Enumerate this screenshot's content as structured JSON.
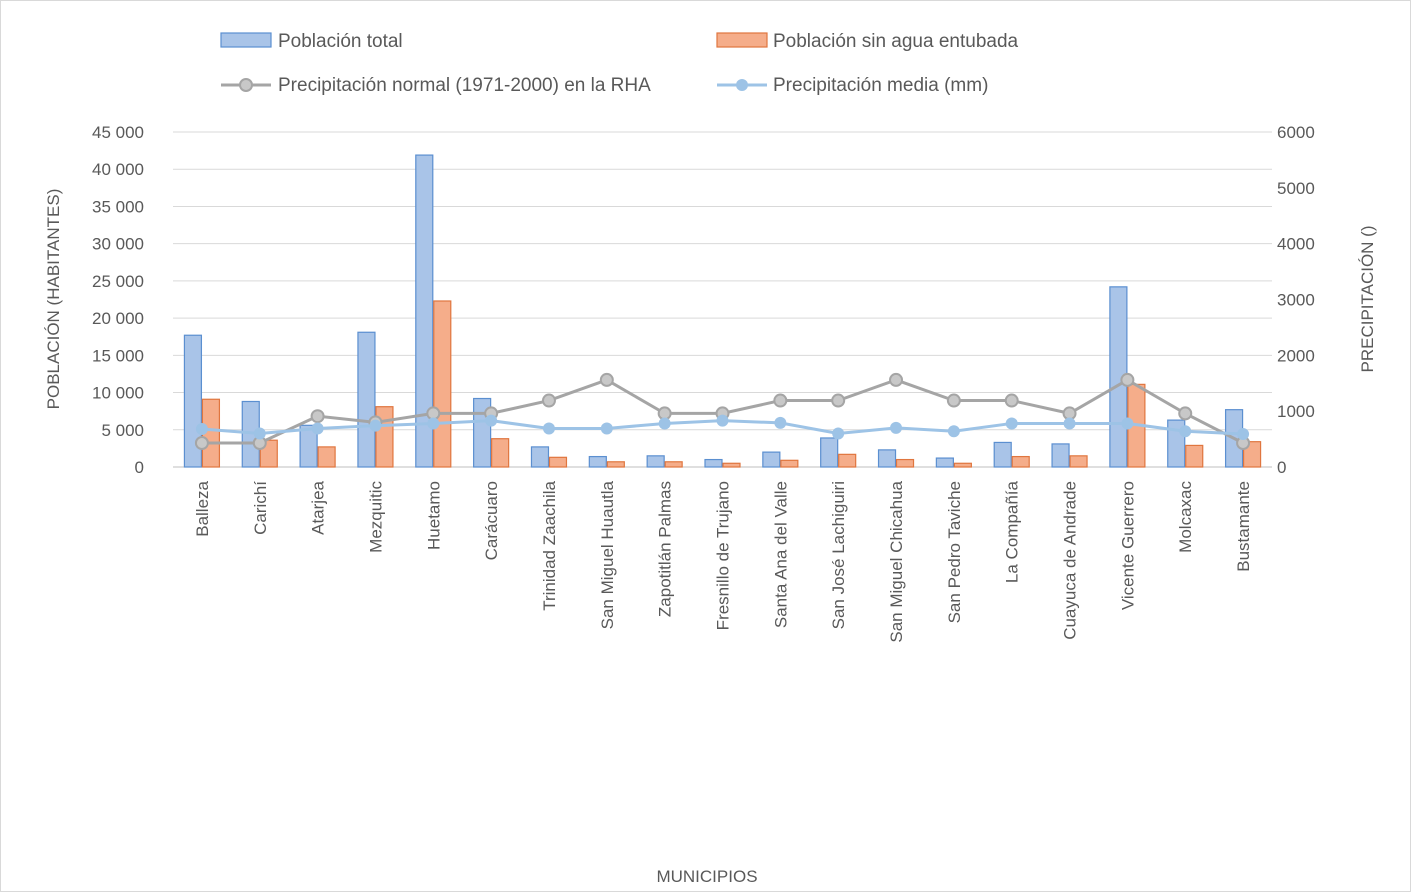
{
  "chart_data": {
    "type": "bar",
    "xlabel": "MUNICIPIOS",
    "ylabel": "POBLACIÓN (HABITANTES)",
    "y2label": "PRECIPITACIÓN ()",
    "ylim": [
      0,
      45000
    ],
    "y2lim": [
      0,
      6000
    ],
    "yticks": [
      "0",
      "5 000",
      "10 000",
      "15 000",
      "20 000",
      "25 000",
      "30 000",
      "35 000",
      "40 000",
      "45 000"
    ],
    "y2ticks": [
      "0",
      "1000",
      "2000",
      "3000",
      "4000",
      "5000",
      "6000"
    ],
    "grid": true,
    "legend_position": "top",
    "categories": [
      "Balleza",
      "Carichí",
      "Atarjea",
      "Mezquitic",
      "Huetamo",
      "Carácuaro",
      "Trinidad Zaachila",
      "San Miguel Huautla",
      "Zapotitlán Palmas",
      "Fresnillo de Trujano",
      "Santa Ana del Valle",
      "San José Lachiguiri",
      "San Miguel Chicahua",
      "San Pedro Taviche",
      "La Compañía",
      "Cuayuca de Andrade",
      "Vicente Guerrero",
      "Molcaxac",
      "Bustamante"
    ],
    "series": [
      {
        "name": "Población total",
        "kind": "bar",
        "axis": "left",
        "fill": "#a9c4e8",
        "stroke": "#5b8fd0",
        "values": [
          17700,
          8800,
          5600,
          18100,
          41900,
          9200,
          2700,
          1400,
          1500,
          1000,
          2000,
          3900,
          2300,
          1200,
          3300,
          3100,
          24200,
          6300,
          7700
        ]
      },
      {
        "name": "Población sin agua entubada",
        "kind": "bar",
        "axis": "left",
        "fill": "#f5ad8a",
        "stroke": "#e0763f",
        "values": [
          9100,
          3600,
          2700,
          8100,
          22300,
          3800,
          1300,
          700,
          700,
          500,
          900,
          1700,
          1000,
          500,
          1400,
          1500,
          11100,
          2900,
          3400
        ]
      },
      {
        "name": "Precipitación  normal (1971-2000) en la RHA",
        "kind": "line",
        "axis": "right",
        "color": "#a5a5a5",
        "marker_fill": "#c8c8c8",
        "values": [
          430,
          430,
          910,
          800,
          960,
          960,
          1190,
          1560,
          960,
          960,
          1190,
          1190,
          1560,
          1190,
          1190,
          960,
          1560,
          960,
          430
        ]
      },
      {
        "name": "Precipitación media (mm)",
        "kind": "line",
        "axis": "right",
        "color": "#9dc3e6",
        "marker_fill": "#9dc3e6",
        "values": [
          680,
          600,
          690,
          740,
          780,
          830,
          690,
          690,
          780,
          830,
          790,
          600,
          700,
          640,
          780,
          780,
          780,
          640,
          590
        ]
      }
    ]
  }
}
